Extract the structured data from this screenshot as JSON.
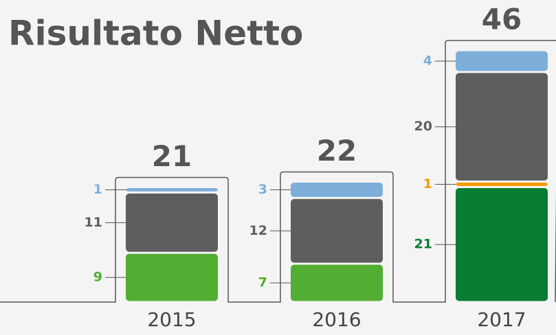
{
  "chart_data": {
    "type": "stacked-bar",
    "title": "Risultato Netto",
    "categories": [
      "2015",
      "2016",
      "2017"
    ],
    "totals": [
      21,
      22,
      46
    ],
    "series": [
      {
        "colors": [
          "#52ae32",
          "#52ae32",
          "#087d33"
        ],
        "values": [
          9,
          7,
          21
        ]
      },
      {
        "color": "#f39a00",
        "values": [
          null,
          null,
          1
        ]
      },
      {
        "color": "#5e5e5e",
        "values": [
          11,
          12,
          20
        ]
      },
      {
        "color": "#7dafda",
        "values": [
          1,
          3,
          4
        ]
      }
    ]
  }
}
